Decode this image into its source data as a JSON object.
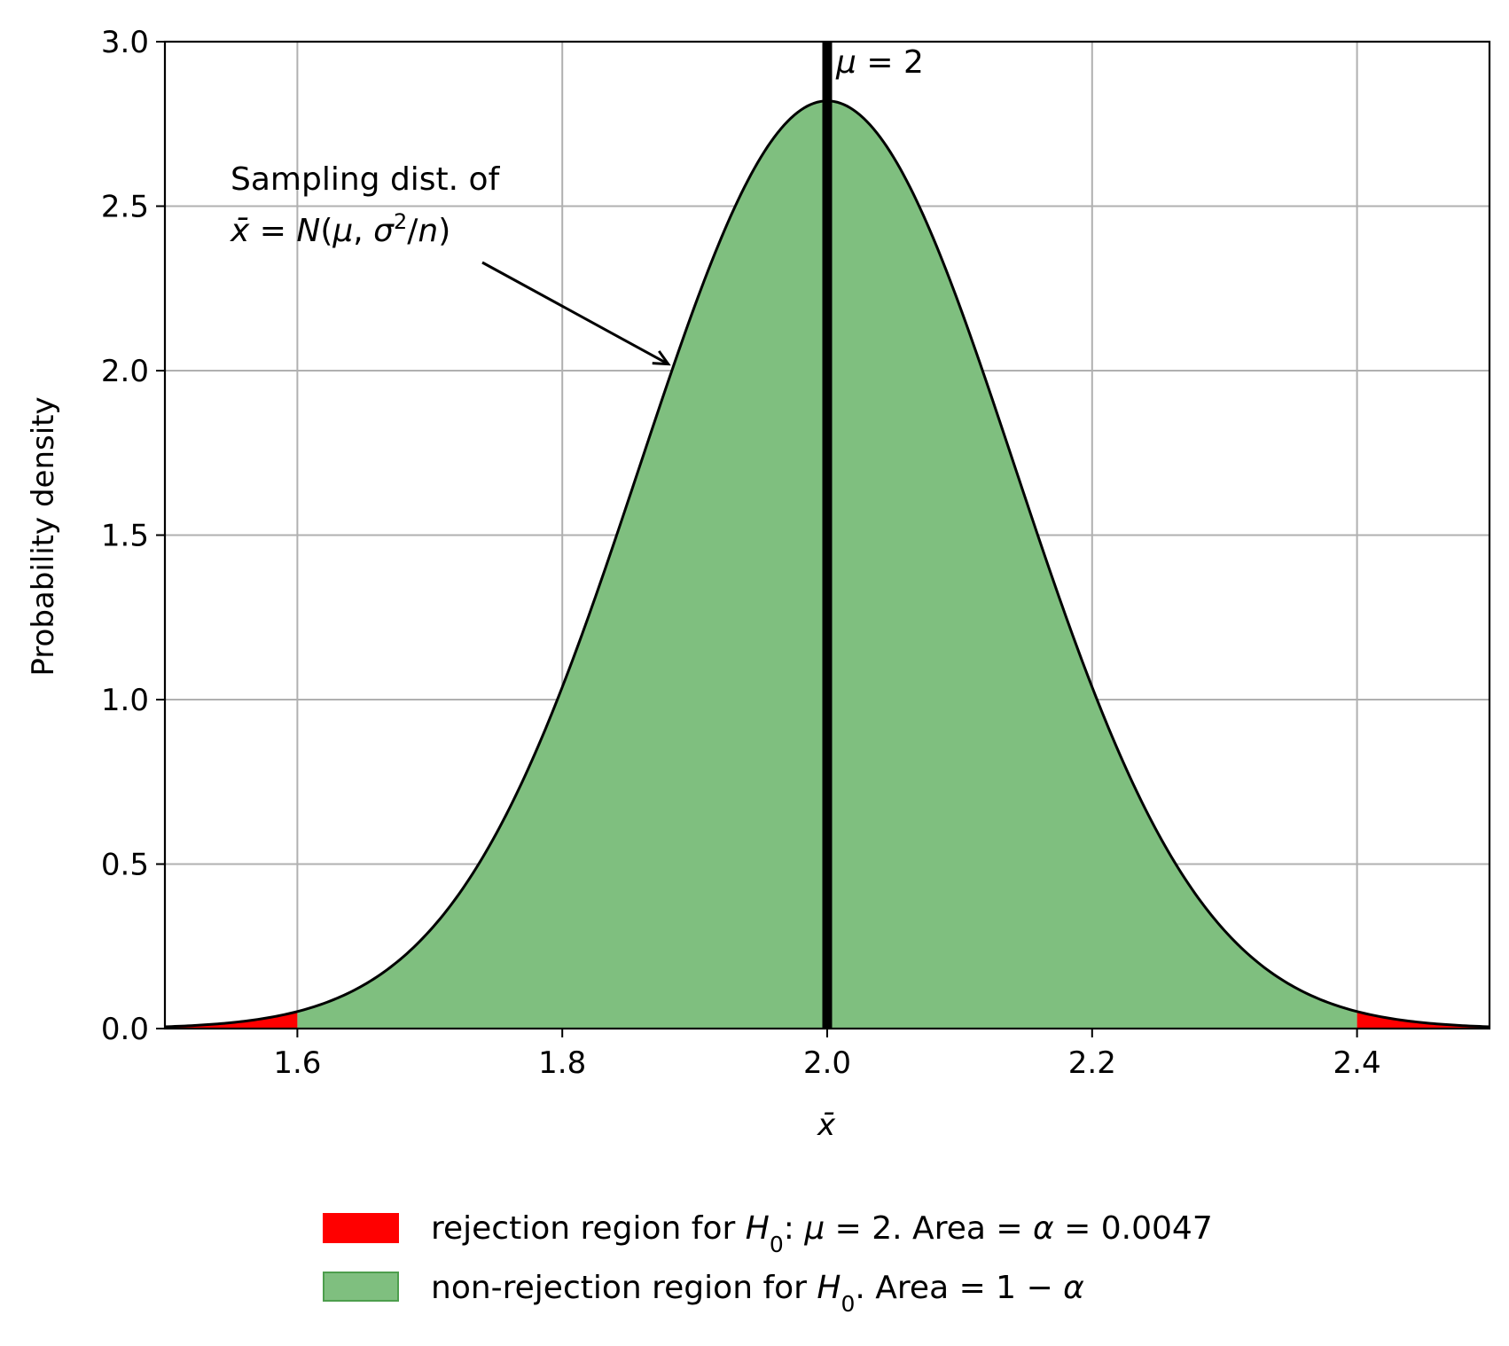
{
  "chart_data": {
    "type": "area",
    "xlabel": "x̄",
    "ylabel": "Probability density",
    "xlim": [
      1.5,
      2.5
    ],
    "ylim": [
      0,
      3.0
    ],
    "xticks": [
      "1.6",
      "1.8",
      "2.0",
      "2.2",
      "2.4"
    ],
    "yticks": [
      "0.0",
      "0.5",
      "1.0",
      "1.5",
      "2.0",
      "2.5",
      "3.0"
    ],
    "grid": true,
    "distribution": {
      "family": "normal",
      "mean": 2.0,
      "peak_density": 2.82
    },
    "rejection_region": {
      "lower_upto": 1.6,
      "upper_from": 2.4,
      "color": "#ff0000"
    },
    "non_rejection_region": {
      "from": 1.6,
      "to": 2.4,
      "color": "#7fbf7f"
    },
    "mean_line": {
      "x": 2.0,
      "label": {
        "mu": "μ",
        "eq": " = 2"
      }
    },
    "annotation": {
      "line1": "Sampling dist. of",
      "line2": {
        "xbar": "x̄",
        "eq": " = ",
        "n": "N",
        "open": "(",
        "mu": "μ",
        "comma": ", ",
        "sigma": "σ",
        "sup": "2",
        "slash": "/",
        "nvar": "n",
        "close": ")"
      },
      "arrow_target": {
        "x": 1.88,
        "y": 2.02
      }
    },
    "legend": {
      "placement": "bottom-center",
      "items": [
        {
          "color": "#ff0000",
          "label": {
            "pre": "rejection region for ",
            "h": "H",
            "sub": "0",
            "mid": ": ",
            "mu": "μ",
            "post": " = 2. Area = ",
            "alpha": "α",
            "tail": " = 0.0047"
          }
        },
        {
          "color": "#7fbf7f",
          "label": {
            "pre": "non-rejection region for ",
            "h": "H",
            "sub": "0",
            "post": ". Area = 1 − ",
            "alpha": "α"
          }
        }
      ]
    }
  }
}
